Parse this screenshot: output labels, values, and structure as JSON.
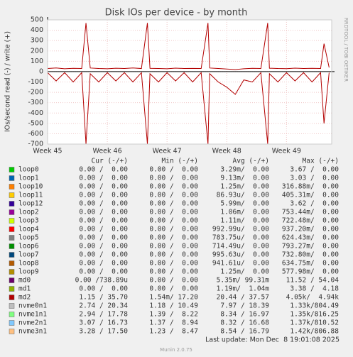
{
  "chart_data": {
    "type": "line",
    "title": "Disk IOs per device - by month",
    "y_label": "IOs/second read (-) / write (+)",
    "side_label": "RRDTOOL / TOBI OETIKER",
    "x": [
      0,
      1,
      2,
      3,
      4,
      4.5,
      5,
      6,
      7,
      8,
      9,
      10,
      11,
      11.7,
      12,
      13,
      14,
      15,
      16,
      17,
      18,
      18.8,
      19,
      20,
      21,
      22,
      23,
      24,
      25,
      25.8,
      26,
      27,
      28,
      29,
      30,
      31,
      32,
      32.4,
      33
    ],
    "series": [
      {
        "color": "#b30000",
        "values": [
          30,
          35,
          28,
          32,
          30,
          470,
          35,
          30,
          28,
          33,
          30,
          35,
          30,
          470,
          32,
          30,
          28,
          34,
          30,
          31,
          30,
          470,
          35,
          30,
          25,
          20,
          28,
          32,
          30,
          470,
          33,
          30,
          29,
          34,
          30,
          32,
          30,
          270,
          40
        ]
      },
      {
        "color": "#b30000",
        "values": [
          -10,
          -90,
          -10,
          -100,
          -10,
          -700,
          -20,
          -100,
          -10,
          -90,
          -10,
          -100,
          -10,
          -700,
          -20,
          -100,
          -10,
          -90,
          -10,
          -100,
          -10,
          -700,
          -20,
          -100,
          -150,
          -220,
          -80,
          -100,
          -10,
          -700,
          -20,
          -100,
          -10,
          -90,
          -10,
          -100,
          -10,
          -500,
          -10
        ]
      }
    ],
    "xlim": [
      0,
      33.3
    ],
    "xticks": [
      {
        "value": 0,
        "label": "Week 45"
      },
      {
        "value": 7,
        "label": "Week 46"
      },
      {
        "value": 14,
        "label": "Week 47"
      },
      {
        "value": 21,
        "label": "Week 48"
      },
      {
        "value": 28,
        "label": "Week 49"
      }
    ],
    "ylim": [
      -700,
      500
    ],
    "yticks": [
      -700,
      -600,
      -500,
      -400,
      -300,
      -200,
      -100,
      0,
      100,
      200,
      300,
      400,
      500
    ],
    "grid": true
  },
  "table": {
    "header": [
      "Cur (-/+)",
      "Min (-/+)",
      "Avg (-/+)",
      "Max (-/+)"
    ],
    "rows": [
      {
        "name": "loop0",
        "color": "#00cc00",
        "cells": [
          "0.00 /  0.00",
          "0.00 /  0.00",
          "3.29m/  0.00",
          "3.67 /  0.00"
        ]
      },
      {
        "name": "loop1",
        "color": "#0066b3",
        "cells": [
          "0.00 /  0.00",
          "0.00 /  0.00",
          "9.13m/  0.00",
          "3.03 /  0.00"
        ]
      },
      {
        "name": "loop10",
        "color": "#ff8000",
        "cells": [
          "0.00 /  0.00",
          "0.00 /  0.00",
          "1.25m/  0.00",
          "316.88m/  0.00"
        ]
      },
      {
        "name": "loop11",
        "color": "#ffcc00",
        "cells": [
          "0.00 /  0.00",
          "0.00 /  0.00",
          "86.93u/  0.00",
          "405.31m/  0.00"
        ]
      },
      {
        "name": "loop12",
        "color": "#330099",
        "cells": [
          "0.00 /  0.00",
          "0.00 /  0.00",
          "5.99m/  0.00",
          "3.62 /  0.00"
        ]
      },
      {
        "name": "loop2",
        "color": "#990099",
        "cells": [
          "0.00 /  0.00",
          "0.00 /  0.00",
          "1.06m/  0.00",
          "753.44m/  0.00"
        ]
      },
      {
        "name": "loop3",
        "color": "#ccff00",
        "cells": [
          "0.00 /  0.00",
          "0.00 /  0.00",
          "1.11m/  0.00",
          "722.48m/  0.00"
        ]
      },
      {
        "name": "loop4",
        "color": "#ff0000",
        "cells": [
          "0.00 /  0.00",
          "0.00 /  0.00",
          "992.99u/  0.00",
          "937.20m/  0.00"
        ]
      },
      {
        "name": "loop5",
        "color": "#808080",
        "cells": [
          "0.00 /  0.00",
          "0.00 /  0.00",
          "783.75u/  0.00",
          "624.43m/  0.00"
        ]
      },
      {
        "name": "loop6",
        "color": "#008f00",
        "cells": [
          "0.00 /  0.00",
          "0.00 /  0.00",
          "714.49u/  0.00",
          "793.27m/  0.00"
        ]
      },
      {
        "name": "loop7",
        "color": "#00487d",
        "cells": [
          "0.00 /  0.00",
          "0.00 /  0.00",
          "995.63u/  0.00",
          "732.80m/  0.00"
        ]
      },
      {
        "name": "loop8",
        "color": "#b35a00",
        "cells": [
          "0.00 /  0.00",
          "0.00 /  0.00",
          "941.61u/  0.00",
          "634.75m/  0.00"
        ]
      },
      {
        "name": "loop9",
        "color": "#b38f00",
        "cells": [
          "0.00 /  0.00",
          "0.00 /  0.00",
          "1.25m/  0.00",
          "577.98m/  0.00"
        ]
      },
      {
        "name": "md0",
        "color": "#6b006b",
        "cells": [
          "0.00 /738.89u",
          "0.00 /  0.00",
          "5.35m/ 99.31m",
          "11.52 / 54.04"
        ]
      },
      {
        "name": "md1",
        "color": "#8fb300",
        "cells": [
          "0.00 /  0.00",
          "0.00 /  0.00",
          "1.19m/  1.04m",
          "3.38 /  4.18"
        ]
      },
      {
        "name": "md2",
        "color": "#b30000",
        "cells": [
          "1.15 / 35.70",
          "1.54m/ 17.20",
          "20.44 / 37.57",
          "4.05k/  4.94k"
        ]
      },
      {
        "name": "nvme0n1",
        "color": "#bebebe",
        "cells": [
          "2.74 / 20.34",
          "1.18 / 10.49",
          "7.97 / 18.39",
          "1.33k/804.49"
        ]
      },
      {
        "name": "nvme1n1",
        "color": "#80ff80",
        "cells": [
          "2.94 / 17.78",
          "1.39 /  8.22",
          "8.34 / 16.97",
          "1.35k/816.25"
        ]
      },
      {
        "name": "nvme2n1",
        "color": "#80c9ff",
        "cells": [
          "3.07 / 16.73",
          "1.37 /  8.94",
          "8.32 / 16.68",
          "1.37k/810.52"
        ]
      },
      {
        "name": "nvme3n1",
        "color": "#ffc080",
        "cells": [
          "3.28 / 17.50",
          "1.23 /  8.47",
          "8.54 / 16.79",
          "1.42k/806.88"
        ]
      }
    ]
  },
  "footer": {
    "last_update": "Last update: Mon Dec  8 19:01:08 2025",
    "version": "Munin 2.0.75"
  }
}
